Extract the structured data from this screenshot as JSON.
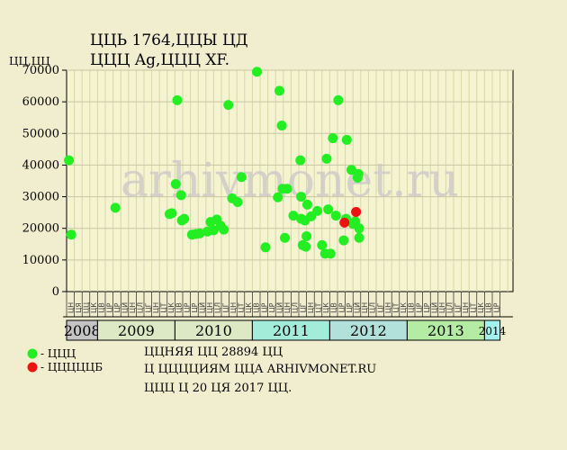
{
  "header": {
    "title": "ЦЦЬ 1764,ЦЦЫ ЦД",
    "subtitle": "ЦЦЦ Ag,ЦЦЦ XF.",
    "y_unit": "ЦЦ,ЦЦ"
  },
  "watermark": "arhivmonet.ru",
  "legend": [
    {
      "label": "- ЦЦЦ",
      "color": "#22ee22"
    },
    {
      "label": "- ЦЦЦЦЦБ",
      "color": "#ee1111"
    }
  ],
  "footer": {
    "line1": "ЦЦНЯЯ ЦЦ 28894 ЦЦ",
    "line2": "Ц ЦЦЦЦИЯМ ЦЦА ARHIVMONET.RU",
    "line3": "ЦЦЦ Ц 20 ЦЯ 2017 ЦЦ."
  },
  "chart_data": {
    "type": "scatter",
    "ylim": [
      0,
      70000
    ],
    "yticks": [
      0,
      10000,
      20000,
      30000,
      40000,
      50000,
      60000,
      70000
    ],
    "grid": true,
    "x_range_months": [
      0,
      74
    ],
    "months": [
      "ЦН",
      "ЦЯ",
      "ЦЦ",
      "ЦК",
      "ЦВ",
      "ЦР",
      "ЦР",
      "ЦЙ",
      "ЦН",
      "ЦЛ",
      "ЦГ",
      "ЦН",
      "ЦТ",
      "ЦК",
      "ЦВ",
      "ЦР",
      "ЦР",
      "ЦЙ",
      "ЦН",
      "ЦЛ",
      "ЦГ",
      "ЦН",
      "ЦТ",
      "ЦК",
      "ЦВ",
      "ЦР",
      "ЦР",
      "ЦЙ",
      "ЦН",
      "ЦЛ",
      "ЦГ",
      "ЦН",
      "ЦТ",
      "ЦК",
      "ЦВ",
      "ЦР",
      "ЦР",
      "ЦЙ",
      "ЦН",
      "ЦЛ",
      "ЦГ",
      "ЦН",
      "ЦТ",
      "ЦК",
      "ЦВ",
      "ЦР",
      "ЦР",
      "ЦЙ",
      "ЦН",
      "ЦЛ",
      "ЦГ",
      "ЦН",
      "ЦТ",
      "ЦК",
      "ЦВ",
      "ЦР"
    ],
    "years": [
      {
        "label": "2008",
        "start": 0,
        "end": 4,
        "color": "#c4c4c4"
      },
      {
        "label": "2009",
        "start": 4,
        "end": 14,
        "color": "#dde8c4"
      },
      {
        "label": "2010",
        "start": 14,
        "end": 24,
        "color": "#dde8c4"
      },
      {
        "label": "2011",
        "start": 24,
        "end": 34,
        "color": "#a4ecda"
      },
      {
        "label": "2012",
        "start": 34,
        "end": 44,
        "color": "#b2e0da"
      },
      {
        "label": "2013",
        "start": 44,
        "end": 54,
        "color": "#b4eca4"
      },
      {
        "label": "2014",
        "start": 54,
        "end": 56,
        "color": "#a4f0ec"
      }
    ],
    "series": [
      {
        "name": "- ЦЦЦ",
        "color": "#22ee22",
        "points": [
          [
            0.3,
            41500
          ],
          [
            0.6,
            18000
          ],
          [
            6.3,
            26500
          ],
          [
            13.3,
            24500
          ],
          [
            13.6,
            24800
          ],
          [
            14.1,
            34000
          ],
          [
            14.3,
            60500
          ],
          [
            14.8,
            30500
          ],
          [
            14.9,
            22500
          ],
          [
            15.2,
            23000
          ],
          [
            16.2,
            18000
          ],
          [
            16.7,
            18200
          ],
          [
            17.2,
            18400
          ],
          [
            18.2,
            19000
          ],
          [
            18.6,
            22000
          ],
          [
            19.0,
            19400
          ],
          [
            19.4,
            22800
          ],
          [
            19.9,
            20800
          ],
          [
            20.3,
            19600
          ],
          [
            20.9,
            59000
          ],
          [
            21.4,
            29500
          ],
          [
            22.1,
            28300
          ],
          [
            22.6,
            36200
          ],
          [
            24.6,
            69500
          ],
          [
            25.7,
            14000
          ],
          [
            27.3,
            29800
          ],
          [
            27.5,
            63500
          ],
          [
            27.9,
            32500
          ],
          [
            27.8,
            52500
          ],
          [
            28.2,
            17000
          ],
          [
            28.5,
            32500
          ],
          [
            29.3,
            24000
          ],
          [
            30.2,
            41500
          ],
          [
            30.3,
            30000
          ],
          [
            30.3,
            23000
          ],
          [
            30.5,
            14700
          ],
          [
            30.8,
            22500
          ],
          [
            30.9,
            14200
          ],
          [
            31.0,
            17500
          ],
          [
            31.1,
            27500
          ],
          [
            31.6,
            23800
          ],
          [
            32.4,
            25500
          ],
          [
            33.0,
            14700
          ],
          [
            33.4,
            12000
          ],
          [
            33.6,
            42000
          ],
          [
            33.8,
            26000
          ],
          [
            34.1,
            12000
          ],
          [
            34.4,
            48500
          ],
          [
            34.8,
            24000
          ],
          [
            35.1,
            60500
          ],
          [
            35.8,
            16200
          ],
          [
            36.1,
            23000
          ],
          [
            36.2,
            48000
          ],
          [
            36.8,
            38500
          ],
          [
            37.0,
            21400
          ],
          [
            37.3,
            22200
          ],
          [
            37.6,
            36000
          ],
          [
            37.7,
            37200
          ],
          [
            37.8,
            20000
          ],
          [
            37.8,
            17000
          ]
        ]
      },
      {
        "name": "- ЦЦЦЦЦБ",
        "color": "#ee1111",
        "points": [
          [
            35.9,
            21800
          ],
          [
            37.4,
            25200
          ]
        ]
      }
    ]
  }
}
